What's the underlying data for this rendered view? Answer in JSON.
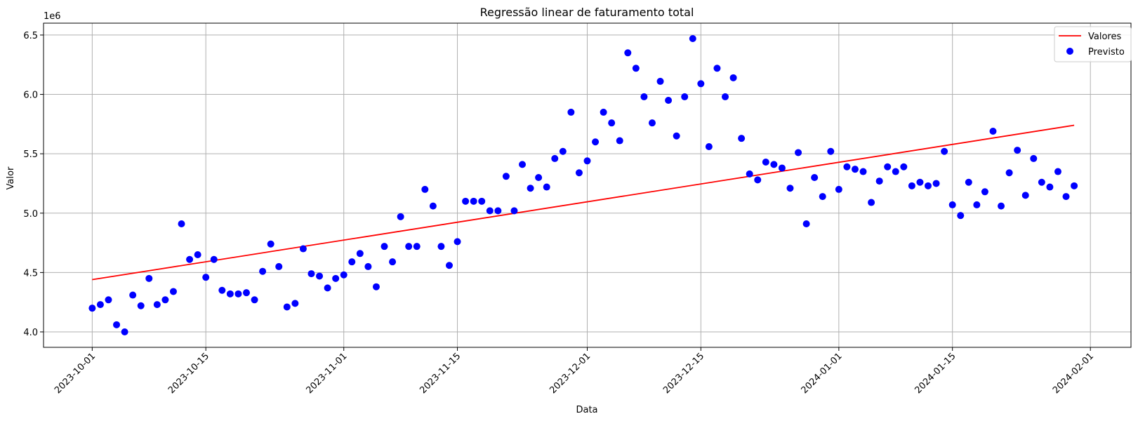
{
  "chart_data": {
    "type": "scatter",
    "title": "Regressão linear de faturamento total",
    "xlabel": "Data",
    "ylabel": "Valor",
    "y_offset_label": "1e6",
    "grid": true,
    "legend_position": "top-right",
    "x_ticks": [
      "2023-10-01",
      "2023-10-15",
      "2023-11-01",
      "2023-11-15",
      "2023-12-01",
      "2023-12-15",
      "2024-01-01",
      "2024-01-15",
      "2024-02-01"
    ],
    "y_ticks": [
      "4.0",
      "4.5",
      "5.0",
      "5.5",
      "6.0",
      "6.5"
    ],
    "xlim": [
      "2023-09-25",
      "2024-02-06"
    ],
    "ylim": [
      3.87,
      6.6
    ],
    "series": [
      {
        "name": "Valores",
        "kind": "scatter",
        "color": "#0000ff",
        "points": [
          [
            "2023-10-01",
            4.2
          ],
          [
            "2023-10-02",
            4.23
          ],
          [
            "2023-10-03",
            4.27
          ],
          [
            "2023-10-04",
            4.06
          ],
          [
            "2023-10-05",
            4.0
          ],
          [
            "2023-10-06",
            4.31
          ],
          [
            "2023-10-07",
            4.22
          ],
          [
            "2023-10-08",
            4.45
          ],
          [
            "2023-10-09",
            4.23
          ],
          [
            "2023-10-10",
            4.27
          ],
          [
            "2023-10-11",
            4.34
          ],
          [
            "2023-10-12",
            4.91
          ],
          [
            "2023-10-13",
            4.61
          ],
          [
            "2023-10-14",
            4.65
          ],
          [
            "2023-10-15",
            4.46
          ],
          [
            "2023-10-16",
            4.61
          ],
          [
            "2023-10-17",
            4.35
          ],
          [
            "2023-10-18",
            4.32
          ],
          [
            "2023-10-19",
            4.32
          ],
          [
            "2023-10-20",
            4.33
          ],
          [
            "2023-10-21",
            4.27
          ],
          [
            "2023-10-22",
            4.51
          ],
          [
            "2023-10-23",
            4.74
          ],
          [
            "2023-10-24",
            4.55
          ],
          [
            "2023-10-25",
            4.21
          ],
          [
            "2023-10-26",
            4.24
          ],
          [
            "2023-10-27",
            4.7
          ],
          [
            "2023-10-28",
            4.49
          ],
          [
            "2023-10-29",
            4.47
          ],
          [
            "2023-10-30",
            4.37
          ],
          [
            "2023-10-31",
            4.45
          ],
          [
            "2023-11-01",
            4.48
          ],
          [
            "2023-11-02",
            4.59
          ],
          [
            "2023-11-03",
            4.66
          ],
          [
            "2023-11-04",
            4.55
          ],
          [
            "2023-11-05",
            4.38
          ],
          [
            "2023-11-06",
            4.72
          ],
          [
            "2023-11-07",
            4.59
          ],
          [
            "2023-11-08",
            4.97
          ],
          [
            "2023-11-09",
            4.72
          ],
          [
            "2023-11-10",
            4.72
          ],
          [
            "2023-11-11",
            5.2
          ],
          [
            "2023-11-12",
            5.06
          ],
          [
            "2023-11-13",
            4.72
          ],
          [
            "2023-11-14",
            4.56
          ],
          [
            "2023-11-15",
            4.76
          ],
          [
            "2023-11-16",
            5.1
          ],
          [
            "2023-11-17",
            5.1
          ],
          [
            "2023-11-18",
            5.1
          ],
          [
            "2023-11-19",
            5.02
          ],
          [
            "2023-11-20",
            5.02
          ],
          [
            "2023-11-21",
            5.31
          ],
          [
            "2023-11-22",
            5.02
          ],
          [
            "2023-11-23",
            5.41
          ],
          [
            "2023-11-24",
            5.21
          ],
          [
            "2023-11-25",
            5.3
          ],
          [
            "2023-11-26",
            5.22
          ],
          [
            "2023-11-27",
            5.46
          ],
          [
            "2023-11-28",
            5.52
          ],
          [
            "2023-11-29",
            5.85
          ],
          [
            "2023-11-30",
            5.34
          ],
          [
            "2023-12-01",
            5.44
          ],
          [
            "2023-12-02",
            5.6
          ],
          [
            "2023-12-03",
            5.85
          ],
          [
            "2023-12-04",
            5.76
          ],
          [
            "2023-12-05",
            5.61
          ],
          [
            "2023-12-06",
            6.35
          ],
          [
            "2023-12-07",
            6.22
          ],
          [
            "2023-12-08",
            5.98
          ],
          [
            "2023-12-09",
            5.76
          ],
          [
            "2023-12-10",
            6.11
          ],
          [
            "2023-12-11",
            5.95
          ],
          [
            "2023-12-12",
            5.65
          ],
          [
            "2023-12-13",
            5.98
          ],
          [
            "2023-12-14",
            6.47
          ],
          [
            "2023-12-15",
            6.09
          ],
          [
            "2023-12-16",
            5.56
          ],
          [
            "2023-12-17",
            6.22
          ],
          [
            "2023-12-18",
            5.98
          ],
          [
            "2023-12-19",
            6.14
          ],
          [
            "2023-12-20",
            5.63
          ],
          [
            "2023-12-21",
            5.33
          ],
          [
            "2023-12-22",
            5.28
          ],
          [
            "2023-12-23",
            5.43
          ],
          [
            "2023-12-24",
            5.41
          ],
          [
            "2023-12-25",
            5.38
          ],
          [
            "2023-12-26",
            5.21
          ],
          [
            "2023-12-27",
            5.51
          ],
          [
            "2023-12-28",
            4.91
          ],
          [
            "2023-12-29",
            5.3
          ],
          [
            "2023-12-30",
            5.14
          ],
          [
            "2023-12-31",
            5.52
          ],
          [
            "2024-01-01",
            5.2
          ],
          [
            "2024-01-02",
            5.39
          ],
          [
            "2024-01-03",
            5.37
          ],
          [
            "2024-01-04",
            5.35
          ],
          [
            "2024-01-05",
            5.09
          ],
          [
            "2024-01-06",
            5.27
          ],
          [
            "2024-01-07",
            5.39
          ],
          [
            "2024-01-08",
            5.35
          ],
          [
            "2024-01-09",
            5.39
          ],
          [
            "2024-01-10",
            5.23
          ],
          [
            "2024-01-11",
            5.26
          ],
          [
            "2024-01-12",
            5.23
          ],
          [
            "2024-01-13",
            5.25
          ],
          [
            "2024-01-14",
            5.52
          ],
          [
            "2024-01-15",
            5.07
          ],
          [
            "2024-01-16",
            4.98
          ],
          [
            "2024-01-17",
            5.26
          ],
          [
            "2024-01-18",
            5.07
          ],
          [
            "2024-01-19",
            5.18
          ],
          [
            "2024-01-20",
            5.69
          ],
          [
            "2024-01-21",
            5.06
          ],
          [
            "2024-01-22",
            5.34
          ],
          [
            "2024-01-23",
            5.53
          ],
          [
            "2024-01-24",
            5.15
          ],
          [
            "2024-01-25",
            5.46
          ],
          [
            "2024-01-26",
            5.26
          ],
          [
            "2024-01-27",
            5.22
          ],
          [
            "2024-01-28",
            5.35
          ],
          [
            "2024-01-29",
            5.14
          ],
          [
            "2024-01-30",
            5.23
          ]
        ]
      },
      {
        "name": "Previsto",
        "kind": "line",
        "color": "#ff0000",
        "points": [
          [
            "2023-10-01",
            4.44
          ],
          [
            "2024-01-30",
            5.74
          ]
        ]
      }
    ]
  }
}
